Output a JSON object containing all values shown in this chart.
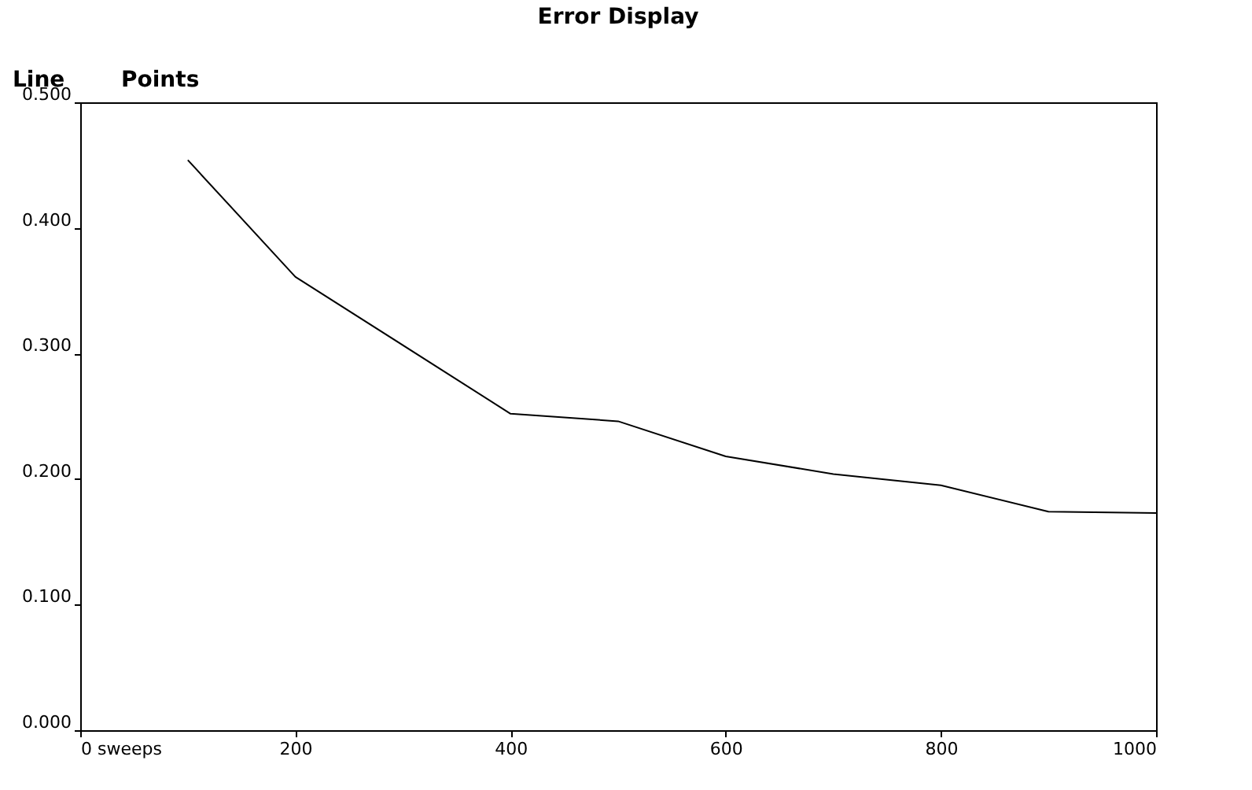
{
  "chart_data": {
    "type": "line",
    "title": "Error Display",
    "annotations": [
      "Line",
      "Points"
    ],
    "x": [
      100,
      200,
      400,
      500,
      600,
      700,
      800,
      900,
      1000
    ],
    "series": [
      {
        "color": "#000000",
        "values": [
          0.454,
          0.361,
          0.252,
          0.246,
          0.218,
          0.204,
          0.195,
          0.174,
          0.173
        ]
      }
    ],
    "xlim": [
      0,
      1000
    ],
    "xticks": [
      {
        "value": 0,
        "label": "0 sweeps"
      },
      200,
      400,
      600,
      800,
      1000
    ],
    "ylim": [
      0,
      0.5
    ],
    "yticks": [
      {
        "value": 0,
        "label": "0.000"
      },
      {
        "value": 0.1,
        "label": "0.100"
      },
      {
        "value": 0.2,
        "label": "0.200"
      },
      {
        "value": 0.3,
        "label": "0.300"
      },
      {
        "value": 0.4,
        "label": "0.400"
      },
      {
        "value": 0.5,
        "label": "0.500"
      }
    ],
    "grid": false,
    "legend": false,
    "marker": "none",
    "line_style": "solid"
  }
}
